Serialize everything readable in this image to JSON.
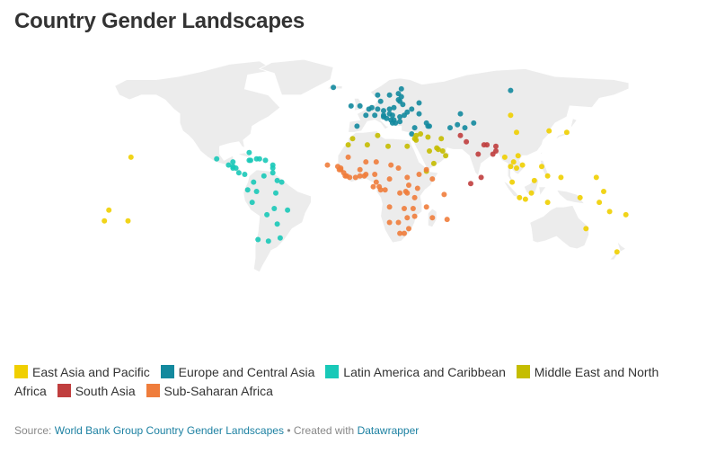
{
  "title": "Country Gender Landscapes",
  "legend": [
    {
      "label": "East Asia and Pacific",
      "color": "#f0cf00"
    },
    {
      "label": "Europe and Central Asia",
      "color": "#13899e"
    },
    {
      "label": "Latin America and Caribbean",
      "color": "#19c9b8"
    },
    {
      "label": "Middle East and North Africa",
      "color": "#c5bd00"
    },
    {
      "label": "South Asia",
      "color": "#c03e3e"
    },
    {
      "label": "Sub-Saharan Africa",
      "color": "#ef7d3c"
    }
  ],
  "footer": {
    "source_prefix": "Source:",
    "source_link": "World Bank Group Country Gender Landscapes",
    "separator": "•",
    "created_prefix": "Created with",
    "created_link": "Datawrapper"
  },
  "map": {
    "projection": "equirectangular world map",
    "regions": {
      "eap": {
        "color": "#f0cf00",
        "points": [
          [
            106,
            -6
          ],
          [
            110,
            -7
          ],
          [
            101,
            4
          ],
          [
            116,
            5
          ],
          [
            125,
            8
          ],
          [
            121,
            14
          ],
          [
            104,
            13
          ],
          [
            102,
            17
          ],
          [
            100,
            14
          ],
          [
            96,
            20
          ],
          [
            108,
            15
          ],
          [
            105,
            21
          ],
          [
            126,
            37
          ],
          [
            104,
            36
          ],
          [
            100,
            47
          ],
          [
            138,
            36
          ],
          [
            147,
            -6
          ],
          [
            160,
            -9
          ],
          [
            167,
            -15
          ],
          [
            178,
            -17
          ],
          [
            -172,
            -14
          ],
          [
            -175,
            -21
          ],
          [
            -159,
            -21
          ],
          [
            134,
            7
          ],
          [
            151,
            -26
          ],
          [
            172,
            -41
          ],
          [
            -157,
            20
          ],
          [
            158,
            7
          ],
          [
            163,
            -2
          ],
          [
            125,
            -9
          ],
          [
            114,
            -3
          ]
        ]
      },
      "eca": {
        "color": "#13899e",
        "points": [
          [
            -20,
            65
          ],
          [
            -8,
            53
          ],
          [
            -2,
            53
          ],
          [
            -4,
            40
          ],
          [
            2,
            47
          ],
          [
            4,
            51
          ],
          [
            6,
            52
          ],
          [
            10,
            51
          ],
          [
            8,
            47
          ],
          [
            14,
            47
          ],
          [
            12,
            56
          ],
          [
            10,
            60
          ],
          [
            18,
            60
          ],
          [
            24,
            61
          ],
          [
            26,
            64
          ],
          [
            18,
            51
          ],
          [
            21,
            52
          ],
          [
            14,
            50
          ],
          [
            18,
            48
          ],
          [
            20,
            47
          ],
          [
            25,
            46
          ],
          [
            16,
            45
          ],
          [
            19,
            44
          ],
          [
            21,
            44
          ],
          [
            20,
            42
          ],
          [
            22,
            42
          ],
          [
            25,
            43
          ],
          [
            14,
            46
          ],
          [
            28,
            47
          ],
          [
            30,
            49
          ],
          [
            27,
            54
          ],
          [
            25,
            56
          ],
          [
            24,
            57
          ],
          [
            26,
            59
          ],
          [
            35,
            39
          ],
          [
            33,
            35
          ],
          [
            44,
            40
          ],
          [
            45,
            40
          ],
          [
            43,
            42
          ],
          [
            38,
            55
          ],
          [
            66,
            48
          ],
          [
            75,
            42
          ],
          [
            69,
            39
          ],
          [
            59,
            39
          ],
          [
            64,
            41
          ],
          [
            100,
            63
          ],
          [
            33,
            51
          ],
          [
            38,
            48
          ]
        ]
      },
      "lac": {
        "color": "#19c9b8",
        "points": [
          [
            -99,
            19
          ],
          [
            -88,
            17
          ],
          [
            -91,
            15
          ],
          [
            -88,
            14
          ],
          [
            -86,
            13
          ],
          [
            -84,
            10
          ],
          [
            -80,
            9
          ],
          [
            -77,
            18
          ],
          [
            -72,
            19
          ],
          [
            -70,
            19
          ],
          [
            -66,
            18
          ],
          [
            -61,
            15
          ],
          [
            -61,
            13
          ],
          [
            -61,
            10
          ],
          [
            -67,
            8
          ],
          [
            -74,
            4
          ],
          [
            -78,
            -1
          ],
          [
            -75,
            -9
          ],
          [
            -65,
            -17
          ],
          [
            -58,
            -23
          ],
          [
            -56,
            -32
          ],
          [
            -64,
            -34
          ],
          [
            -71,
            -33
          ],
          [
            -51,
            -14
          ],
          [
            -58,
            5
          ],
          [
            -55,
            4
          ],
          [
            -88,
            13
          ],
          [
            -77,
            23
          ],
          [
            -76,
            18
          ],
          [
            -72,
            -2
          ],
          [
            -60,
            -13
          ],
          [
            -59,
            -3
          ]
        ]
      },
      "mena": {
        "color": "#c5bd00",
        "points": [
          [
            -7,
            32
          ],
          [
            3,
            28
          ],
          [
            10,
            34
          ],
          [
            17,
            27
          ],
          [
            30,
            27
          ],
          [
            36,
            34
          ],
          [
            36,
            31
          ],
          [
            44,
            33
          ],
          [
            45,
            24
          ],
          [
            48,
            16
          ],
          [
            54,
            24
          ],
          [
            51,
            25
          ],
          [
            50,
            26
          ],
          [
            56,
            21
          ],
          [
            53,
            32
          ],
          [
            39,
            35
          ],
          [
            43,
            11
          ],
          [
            35,
            32
          ],
          [
            -10,
            28
          ]
        ]
      },
      "sa": {
        "color": "#c03e3e",
        "points": [
          [
            66,
            34
          ],
          [
            70,
            30
          ],
          [
            78,
            22
          ],
          [
            84,
            28
          ],
          [
            90,
            24
          ],
          [
            90,
            27
          ],
          [
            80,
            7
          ],
          [
            73,
            3
          ],
          [
            88,
            22
          ],
          [
            82,
            28
          ]
        ]
      },
      "ssa": {
        "color": "#ef7d3c",
        "points": [
          [
            -17,
            14
          ],
          [
            -15,
            13
          ],
          [
            -15,
            12
          ],
          [
            -13,
            10
          ],
          [
            -11,
            8
          ],
          [
            -9,
            7
          ],
          [
            -5,
            7
          ],
          [
            -2,
            8
          ],
          [
            1,
            8
          ],
          [
            2,
            9
          ],
          [
            8,
            9
          ],
          [
            9,
            4
          ],
          [
            11,
            1
          ],
          [
            12,
            -1
          ],
          [
            15,
            -1
          ],
          [
            18,
            6
          ],
          [
            19,
            15
          ],
          [
            24,
            13
          ],
          [
            30,
            7
          ],
          [
            31,
            2
          ],
          [
            38,
            9
          ],
          [
            47,
            6
          ],
          [
            37,
            0
          ],
          [
            29,
            -2
          ],
          [
            30,
            -3
          ],
          [
            35,
            -6
          ],
          [
            25,
            -3
          ],
          [
            18,
            -12
          ],
          [
            28,
            -13
          ],
          [
            34,
            -13
          ],
          [
            35,
            -18
          ],
          [
            30,
            -19
          ],
          [
            24,
            -22
          ],
          [
            18,
            -22
          ],
          [
            25,
            -29
          ],
          [
            28,
            -29
          ],
          [
            31,
            -26
          ],
          [
            47,
            -19
          ],
          [
            57,
            -20
          ],
          [
            55,
            -4
          ],
          [
            43,
            -12
          ],
          [
            -24,
            15
          ],
          [
            7,
            1
          ],
          [
            43,
            12
          ],
          [
            -10,
            20
          ],
          [
            -2,
            12
          ],
          [
            2,
            17
          ],
          [
            9,
            17
          ],
          [
            -16,
            12
          ],
          [
            -12,
            8
          ]
        ]
      }
    }
  }
}
